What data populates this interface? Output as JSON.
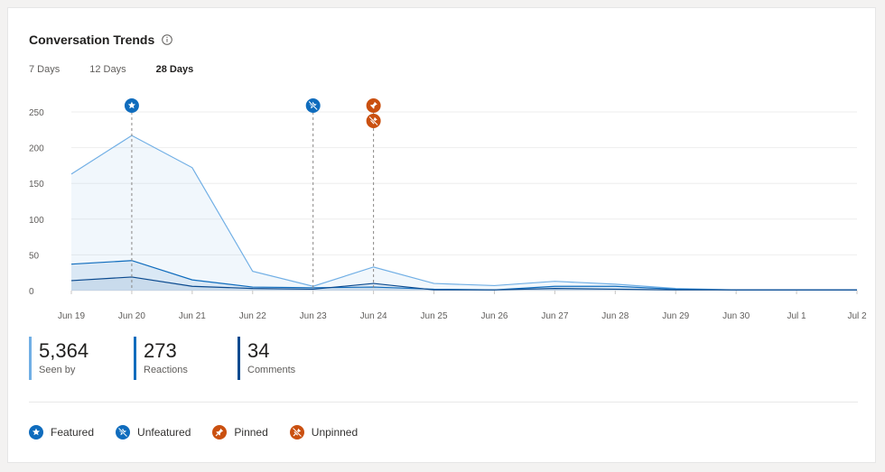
{
  "header": {
    "title": "Conversation Trends"
  },
  "tabs": [
    {
      "label": "7 Days",
      "active": false
    },
    {
      "label": "12 Days",
      "active": false
    },
    {
      "label": "28 Days",
      "active": true
    }
  ],
  "stats": [
    {
      "value": "5,364",
      "label": "Seen by",
      "color": "#71afe5"
    },
    {
      "value": "273",
      "label": "Reactions",
      "color": "#0f6cbd"
    },
    {
      "value": "34",
      "label": "Comments",
      "color": "#0b4a8f"
    }
  ],
  "legend": [
    {
      "label": "Featured",
      "icon": "star-icon",
      "color": "#0f6cbd"
    },
    {
      "label": "Unfeatured",
      "icon": "unstar-icon",
      "color": "#0f6cbd"
    },
    {
      "label": "Pinned",
      "icon": "pin-icon",
      "color": "#ca5010"
    },
    {
      "label": "Unpinned",
      "icon": "unpin-icon",
      "color": "#ca5010"
    }
  ],
  "chart_data": {
    "type": "area",
    "title": "",
    "xlabel": "",
    "ylabel": "",
    "ylim": [
      0,
      250
    ],
    "y_ticks": [
      0,
      50,
      100,
      150,
      200,
      250
    ],
    "x_tick_labels": [
      "Jun 19",
      "Jun 20",
      "Jun 21",
      "Jun 22",
      "Jun 23",
      "Jun 24",
      "Jun 25",
      "Jun 26",
      "Jun 27",
      "Jun 28",
      "Jun 29",
      "Jun 30",
      "Jul 1",
      "Jul 2"
    ],
    "grid": true,
    "series": [
      {
        "name": "Seen by",
        "color": "#71afe5",
        "values": [
          163,
          217,
          172,
          27,
          6,
          33,
          10,
          7,
          13,
          9,
          3,
          1,
          1,
          1
        ]
      },
      {
        "name": "Reactions",
        "color": "#0f6cbd",
        "values": [
          37,
          42,
          15,
          5,
          4,
          5,
          2,
          1,
          6,
          6,
          2,
          1,
          1,
          1
        ]
      },
      {
        "name": "Comments",
        "color": "#0b4a8f",
        "values": [
          14,
          19,
          6,
          3,
          2,
          10,
          1,
          1,
          3,
          2,
          1,
          1,
          1,
          1
        ]
      }
    ],
    "events": [
      {
        "date": "Jun 20",
        "types": [
          "featured"
        ]
      },
      {
        "date": "Jun 23",
        "types": [
          "unfeatured"
        ]
      },
      {
        "date": "Jun 24",
        "types": [
          "pinned",
          "unpinned"
        ]
      }
    ]
  }
}
